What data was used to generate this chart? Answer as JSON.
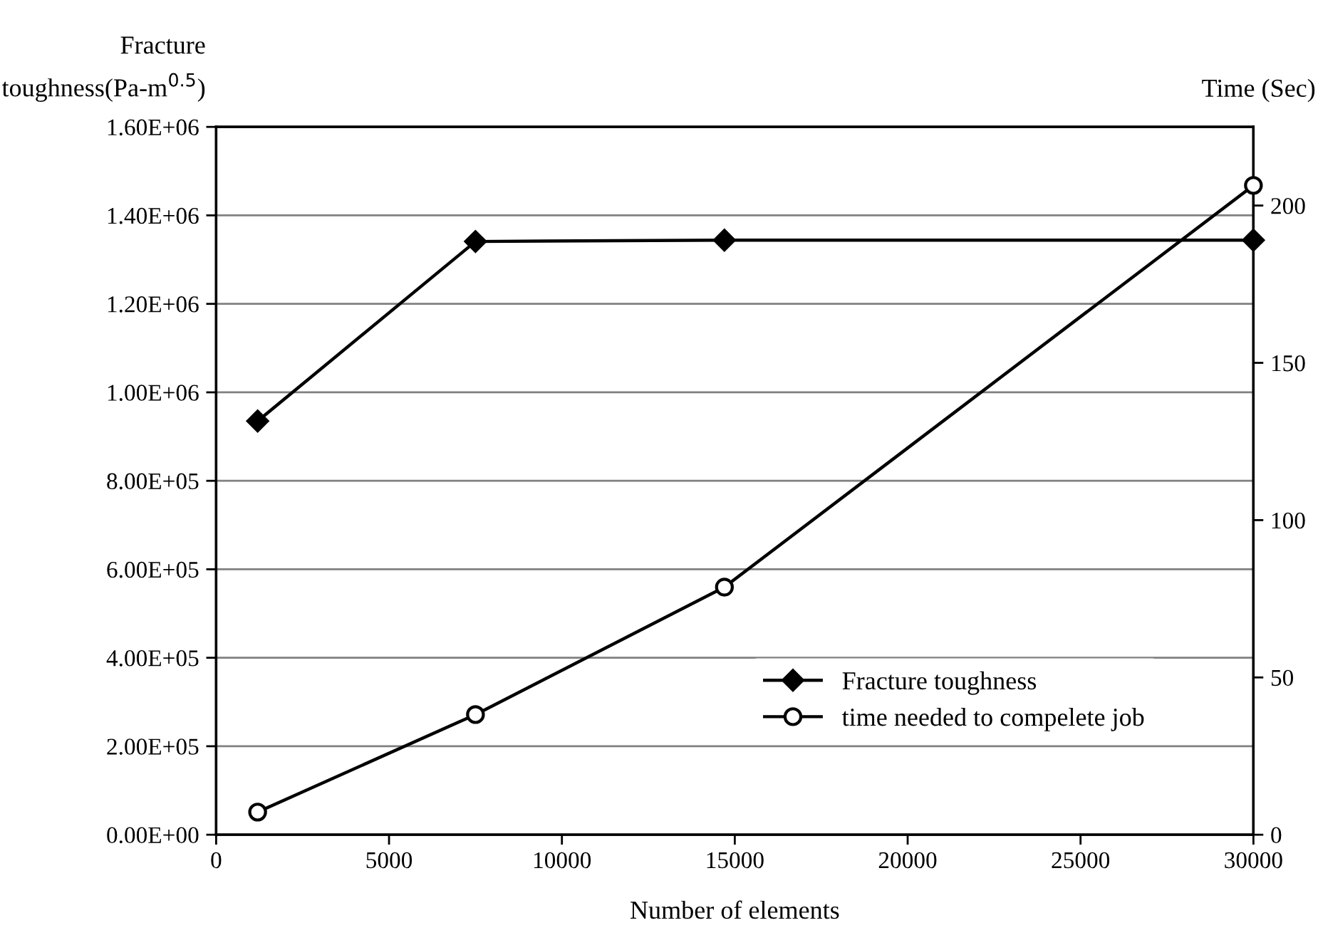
{
  "chart_data": {
    "type": "line",
    "xlabel": "Number of elements",
    "ylabel": "Fracture\ntoughness(Pa-m$^{0.5}$)",
    "y2label": "Time (Sec)",
    "x": [
      1200,
      7500,
      14700,
      30000
    ],
    "series": [
      {
        "name": "Fracture toughness",
        "color": "#000000",
        "marker": "diamond",
        "values": [
          935000,
          1341000,
          1344000,
          1344000
        ]
      },
      {
        "name": "time needed to compelete job",
        "color": "#000000",
        "marker": "circle",
        "axis": "y2",
        "values": [
          7.2,
          38.2,
          78.7,
          206.4
        ]
      }
    ],
    "xlim": [
      0,
      30000
    ],
    "xticks": [
      0,
      5000,
      10000,
      15000,
      20000,
      25000,
      30000
    ],
    "ylim": [
      0,
      1600000
    ],
    "yticks": [
      {
        "value": 0,
        "label": "0.00E+00"
      },
      {
        "value": 200000,
        "label": "2.00E+05"
      },
      {
        "value": 400000,
        "label": "4.00E+05"
      },
      {
        "value": 600000,
        "label": "6.00E+05"
      },
      {
        "value": 800000,
        "label": "8.00E+05"
      },
      {
        "value": 1000000,
        "label": "1.00E+06"
      },
      {
        "value": 1200000,
        "label": "1.20E+06"
      },
      {
        "value": 1400000,
        "label": "1.40E+06"
      },
      {
        "value": 1600000,
        "label": "1.60E+06"
      }
    ],
    "y2lim": [
      0,
      225
    ],
    "y2ticks": [
      0,
      50,
      100,
      150,
      200
    ],
    "grid": "y",
    "legend": "bottom right",
    "line_style": "solid"
  }
}
